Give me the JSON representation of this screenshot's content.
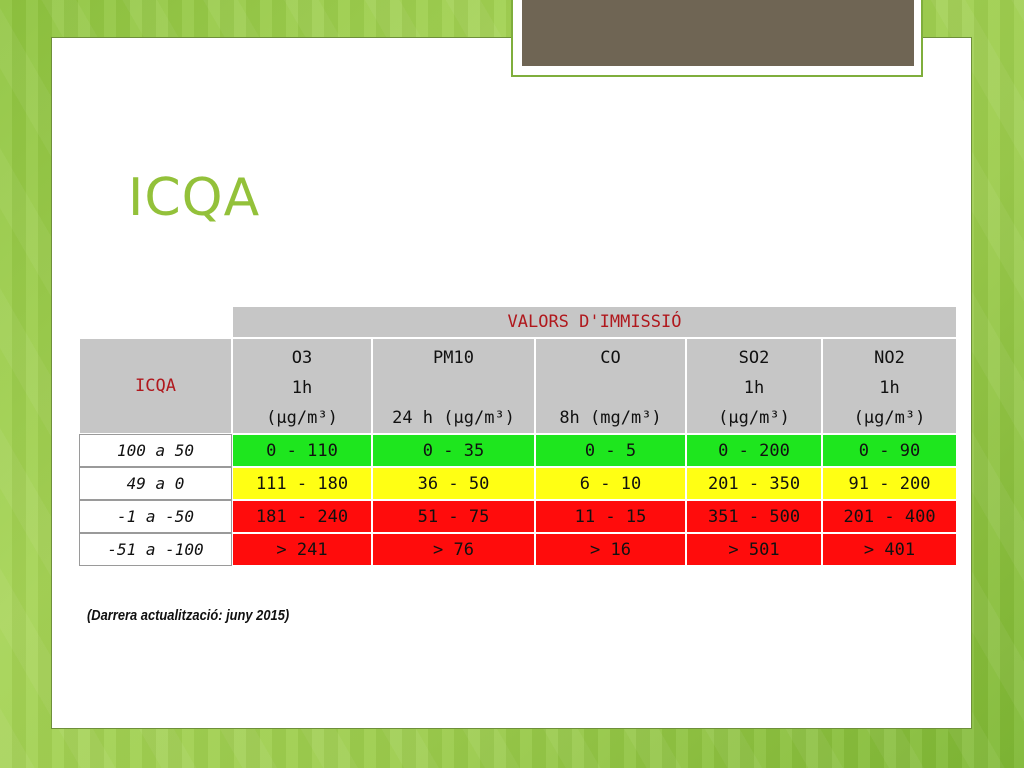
{
  "slide": {
    "title": "ICQA"
  },
  "table": {
    "super_header": "VALORS D'IMMISSIÓ",
    "row_header": "ICQA",
    "pollutants": [
      {
        "name": "O3",
        "period": "1h",
        "unit": "(µg/m³)"
      },
      {
        "name": "PM10",
        "period": "",
        "unit": "24 h (µg/m³)"
      },
      {
        "name": "CO",
        "period": "",
        "unit": "8h (mg/m³)"
      },
      {
        "name": "SO2",
        "period": "1h",
        "unit": "(µg/m³)"
      },
      {
        "name": "NO2",
        "period": "1h",
        "unit": "(µg/m³)"
      }
    ],
    "rows": [
      {
        "label": "100 a 50",
        "color": "#1ee61e",
        "values": [
          "0 - 110",
          "0 - 35",
          "0 - 5",
          "0 - 200",
          "0 - 90"
        ]
      },
      {
        "label": "49 a 0",
        "color": "#ffff14",
        "values": [
          "111 - 180",
          "36 - 50",
          "6 - 10",
          "201 - 350",
          "91 - 200"
        ]
      },
      {
        "label": "-1 a -50",
        "color": "#ff0c0c",
        "values": [
          "181 - 240",
          "51 - 75",
          "11 - 15",
          "351 - 500",
          "201 - 400"
        ]
      },
      {
        "label": "-51 a -100",
        "color": "#ff0c0c",
        "values": [
          "> 241",
          "> 76",
          "> 16",
          "> 501",
          "> 401"
        ]
      }
    ]
  },
  "footnote": "(Darrera actualització: juny 2015)",
  "colors": {
    "accent": "#93c13a",
    "header_grey": "#c6c6c6",
    "header_red_text": "#b0181d",
    "deco_box": "#6f6554"
  }
}
